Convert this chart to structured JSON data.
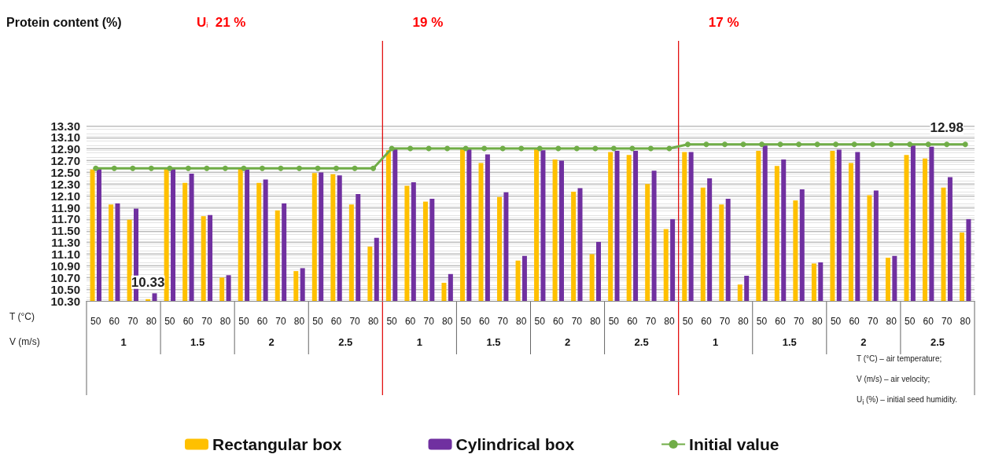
{
  "chart_data": {
    "type": "bar",
    "categories": [
      "50",
      "60",
      "70",
      "80",
      "50",
      "60",
      "70",
      "80",
      "50",
      "60",
      "70",
      "80",
      "50",
      "60",
      "70",
      "80",
      "50",
      "60",
      "70",
      "80",
      "50",
      "60",
      "70",
      "80",
      "50",
      "60",
      "70",
      "80",
      "50",
      "60",
      "70",
      "80",
      "50",
      "60",
      "70",
      "80",
      "50",
      "60",
      "70",
      "80",
      "50",
      "60",
      "70",
      "80",
      "50",
      "60",
      "70",
      "80"
    ],
    "series": [
      {
        "name": "Rectangular box",
        "color": "#ffc000",
        "values": [
          12.55,
          11.95,
          11.69,
          10.33,
          12.56,
          12.32,
          11.75,
          10.7,
          12.56,
          12.32,
          11.85,
          10.81,
          12.49,
          12.47,
          11.95,
          11.23,
          12.88,
          12.27,
          12.0,
          10.61,
          12.92,
          12.66,
          12.08,
          10.99,
          12.9,
          12.72,
          12.17,
          11.1,
          12.85,
          12.8,
          12.3,
          11.53,
          12.85,
          12.24,
          11.95,
          10.58,
          12.87,
          12.61,
          12.02,
          10.94,
          12.87,
          12.66,
          12.11,
          11.04,
          12.8,
          12.74,
          12.24,
          11.47
        ],
        "value_labels": [
          null,
          null,
          null,
          "10.33",
          null,
          null,
          null,
          null,
          null,
          null,
          null,
          null,
          null,
          null,
          null,
          null,
          null,
          null,
          null,
          null,
          null,
          null,
          null,
          null,
          null,
          null,
          null,
          null,
          null,
          null,
          null,
          null,
          null,
          null,
          null,
          null,
          null,
          null,
          null,
          null,
          null,
          null,
          null,
          null,
          null,
          null,
          null,
          null
        ]
      },
      {
        "name": "Cylindrical box",
        "color": "#7030a0",
        "values": [
          12.56,
          11.97,
          11.88,
          10.43,
          12.56,
          12.48,
          11.77,
          10.74,
          12.55,
          12.38,
          11.97,
          10.86,
          12.5,
          12.45,
          12.13,
          11.38,
          12.9,
          12.33,
          12.05,
          10.76,
          12.9,
          12.81,
          12.16,
          11.07,
          12.88,
          12.7,
          12.23,
          11.31,
          12.87,
          12.87,
          12.53,
          11.7,
          12.85,
          12.4,
          12.05,
          10.73,
          12.96,
          12.72,
          12.21,
          10.96,
          12.89,
          12.85,
          12.19,
          11.07,
          12.96,
          12.94,
          12.42,
          11.7
        ]
      },
      {
        "name": "Initial value",
        "type": "line",
        "color": "#70ad47",
        "marker": "circle",
        "values": [
          12.57,
          12.57,
          12.57,
          12.57,
          12.57,
          12.57,
          12.57,
          12.57,
          12.57,
          12.57,
          12.57,
          12.57,
          12.57,
          12.57,
          12.57,
          12.57,
          12.91,
          12.91,
          12.91,
          12.91,
          12.91,
          12.91,
          12.91,
          12.91,
          12.91,
          12.91,
          12.91,
          12.91,
          12.91,
          12.91,
          12.91,
          12.91,
          12.98,
          12.98,
          12.98,
          12.98,
          12.98,
          12.98,
          12.98,
          12.98,
          12.98,
          12.98,
          12.98,
          12.98,
          12.98,
          12.98,
          12.98,
          12.98
        ],
        "value_labels": [
          null,
          null,
          null,
          null,
          null,
          null,
          null,
          null,
          null,
          null,
          null,
          null,
          null,
          null,
          null,
          null,
          null,
          null,
          null,
          null,
          null,
          null,
          null,
          null,
          null,
          null,
          null,
          null,
          null,
          null,
          null,
          null,
          null,
          null,
          null,
          null,
          null,
          null,
          null,
          null,
          null,
          null,
          null,
          null,
          null,
          null,
          "12.98",
          null
        ]
      }
    ],
    "ylim": [
      10.3,
      13.3
    ],
    "yticks": [
      {
        "value": 10.3,
        "label": "10.30"
      },
      {
        "value": 10.5,
        "label": "10.50"
      },
      {
        "value": 10.7,
        "label": "10.70"
      },
      {
        "value": 10.9,
        "label": "10.90"
      },
      {
        "value": 11.1,
        "label": "11.10"
      },
      {
        "value": 11.3,
        "label": "11.30"
      },
      {
        "value": 11.5,
        "label": "11.50"
      },
      {
        "value": 11.7,
        "label": "11.70"
      },
      {
        "value": 11.9,
        "label": "11.90"
      },
      {
        "value": 12.1,
        "label": "12.10"
      },
      {
        "value": 12.3,
        "label": "12.30"
      },
      {
        "value": 12.5,
        "label": "12.50"
      },
      {
        "value": 12.7,
        "label": "12.70"
      },
      {
        "value": 12.9,
        "label": "12.90"
      },
      {
        "value": 13.1,
        "label": "13.10"
      },
      {
        "value": 13.3,
        "label": "13.30"
      }
    ],
    "grid": "y",
    "legend": "bottom",
    "annotations": [
      "Protein content (%)",
      "U$_{i}$  21 %",
      "19 %",
      "17 %",
      "T (°C)",
      "V (m/s)",
      "1",
      "1.5",
      "2",
      "2.5",
      "1",
      "1.5",
      "2",
      "2.5",
      "1",
      "1.5",
      "2",
      "2.5",
      "T (°C) – air temperature;",
      "V (m/s) – air velocity;",
      "U$_{i}$ (%) – initial seed humidity."
    ]
  }
}
